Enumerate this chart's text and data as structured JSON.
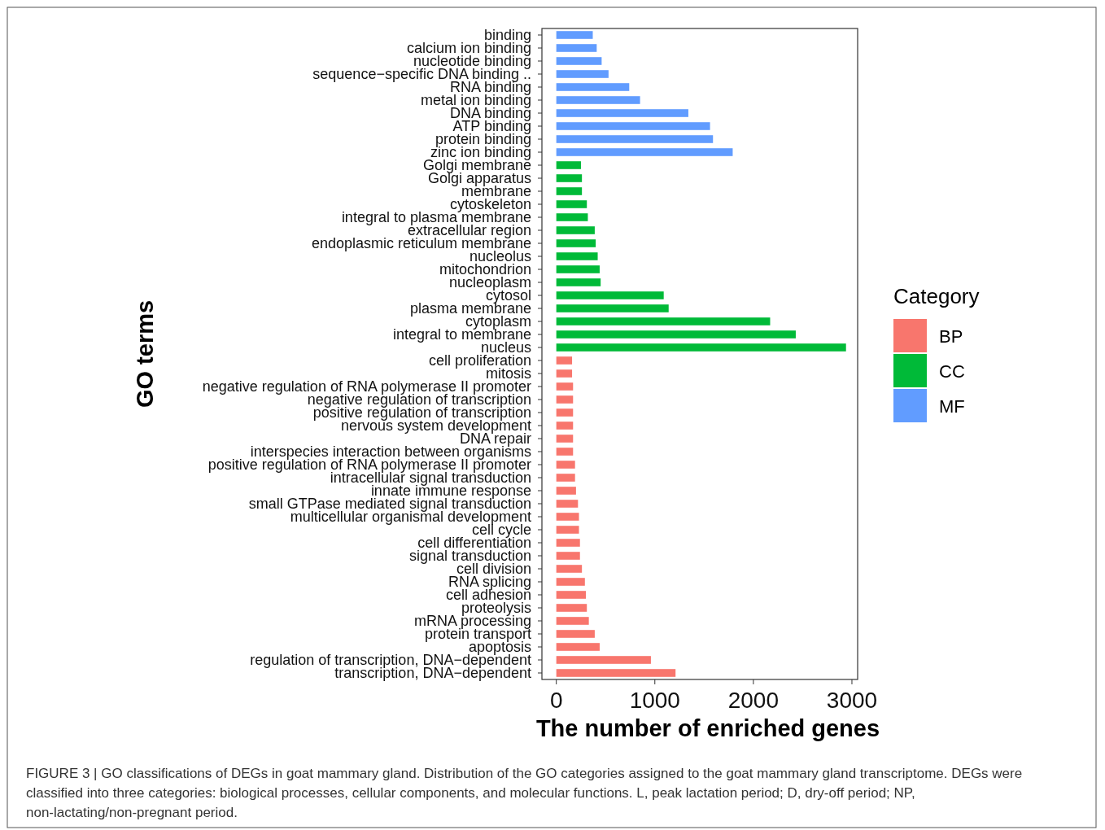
{
  "chart_data": {
    "type": "bar",
    "orientation": "horizontal",
    "xlabel": "The number of enriched genes",
    "ylabel": "GO terms",
    "legend_title": "Category",
    "legend": "right",
    "grid": false,
    "categories": [
      "binding",
      "calcium ion binding",
      "nucleotide binding",
      "sequence−specific DNA binding ..",
      "RNA binding",
      "metal ion binding",
      "DNA binding",
      "ATP binding",
      "protein binding",
      "zinc ion binding",
      "Golgi membrane",
      "Golgi apparatus",
      "membrane",
      "cytoskeleton",
      "integral to plasma membrane",
      "extracellular region",
      "endoplasmic reticulum membrane",
      "nucleolus",
      "mitochondrion",
      "nucleoplasm",
      "cytosol",
      "plasma membrane",
      "cytoplasm",
      "integral to membrane",
      "nucleus",
      "cell proliferation",
      "mitosis",
      "negative regulation of RNA polymerase II promoter",
      "negative regulation of transcription",
      "positive regulation of transcription",
      "nervous system development",
      "DNA repair",
      "interspecies interaction between organisms",
      "positive regulation of RNA polymerase II promoter",
      "intracellular signal transduction",
      "innate immune response",
      "small GTPase mediated signal transduction",
      "multicellular organismal development",
      "cell cycle",
      "cell differentiation",
      "signal transduction",
      "cell division",
      "RNA splicing",
      "cell adhesion",
      "proteolysis",
      "mRNA processing",
      "protein transport",
      "apoptosis",
      "regulation of transcription, DNA−dependent",
      "transcription, DNA−dependent"
    ],
    "series": [
      {
        "name": "BP",
        "color": "#f8766d",
        "values": [
          null,
          null,
          null,
          null,
          null,
          null,
          null,
          null,
          null,
          null,
          null,
          null,
          null,
          null,
          null,
          null,
          null,
          null,
          null,
          null,
          null,
          null,
          null,
          null,
          null,
          160,
          160,
          170,
          170,
          170,
          170,
          170,
          170,
          190,
          190,
          200,
          220,
          230,
          230,
          240,
          240,
          260,
          290,
          300,
          310,
          330,
          390,
          440,
          960,
          1210
        ]
      },
      {
        "name": "CC",
        "color": "#00ba38",
        "values": [
          null,
          null,
          null,
          null,
          null,
          null,
          null,
          null,
          null,
          null,
          250,
          260,
          260,
          310,
          320,
          390,
          400,
          420,
          440,
          450,
          1090,
          1140,
          2170,
          2430,
          2940,
          null,
          null,
          null,
          null,
          null,
          null,
          null,
          null,
          null,
          null,
          null,
          null,
          null,
          null,
          null,
          null,
          null,
          null,
          null,
          null,
          null,
          null,
          null,
          null,
          null
        ]
      },
      {
        "name": "MF",
        "color": "#619cff",
        "values": [
          370,
          410,
          460,
          530,
          740,
          850,
          1340,
          1560,
          1590,
          1790,
          null,
          null,
          null,
          null,
          null,
          null,
          null,
          null,
          null,
          null,
          null,
          null,
          null,
          null,
          null,
          null,
          null,
          null,
          null,
          null,
          null,
          null,
          null,
          null,
          null,
          null,
          null,
          null,
          null,
          null,
          null,
          null,
          null,
          null,
          null,
          null,
          null,
          null,
          null,
          null
        ]
      }
    ],
    "xlim": [
      -146,
      3058
    ],
    "xticks": [
      0,
      1000,
      2000,
      3000
    ],
    "annotations": [
      "FIGURE 3 | GO classifications of DEGs in goat mammary gland. Distribution of the GO categories assigned to the goat mammary gland transcriptome. DEGs were classified into three categories: biological processes, cellular components, and molecular functions. L, peak lactation period; D, dry-off period; NP, non-lactating/non-pregnant period."
    ]
  }
}
